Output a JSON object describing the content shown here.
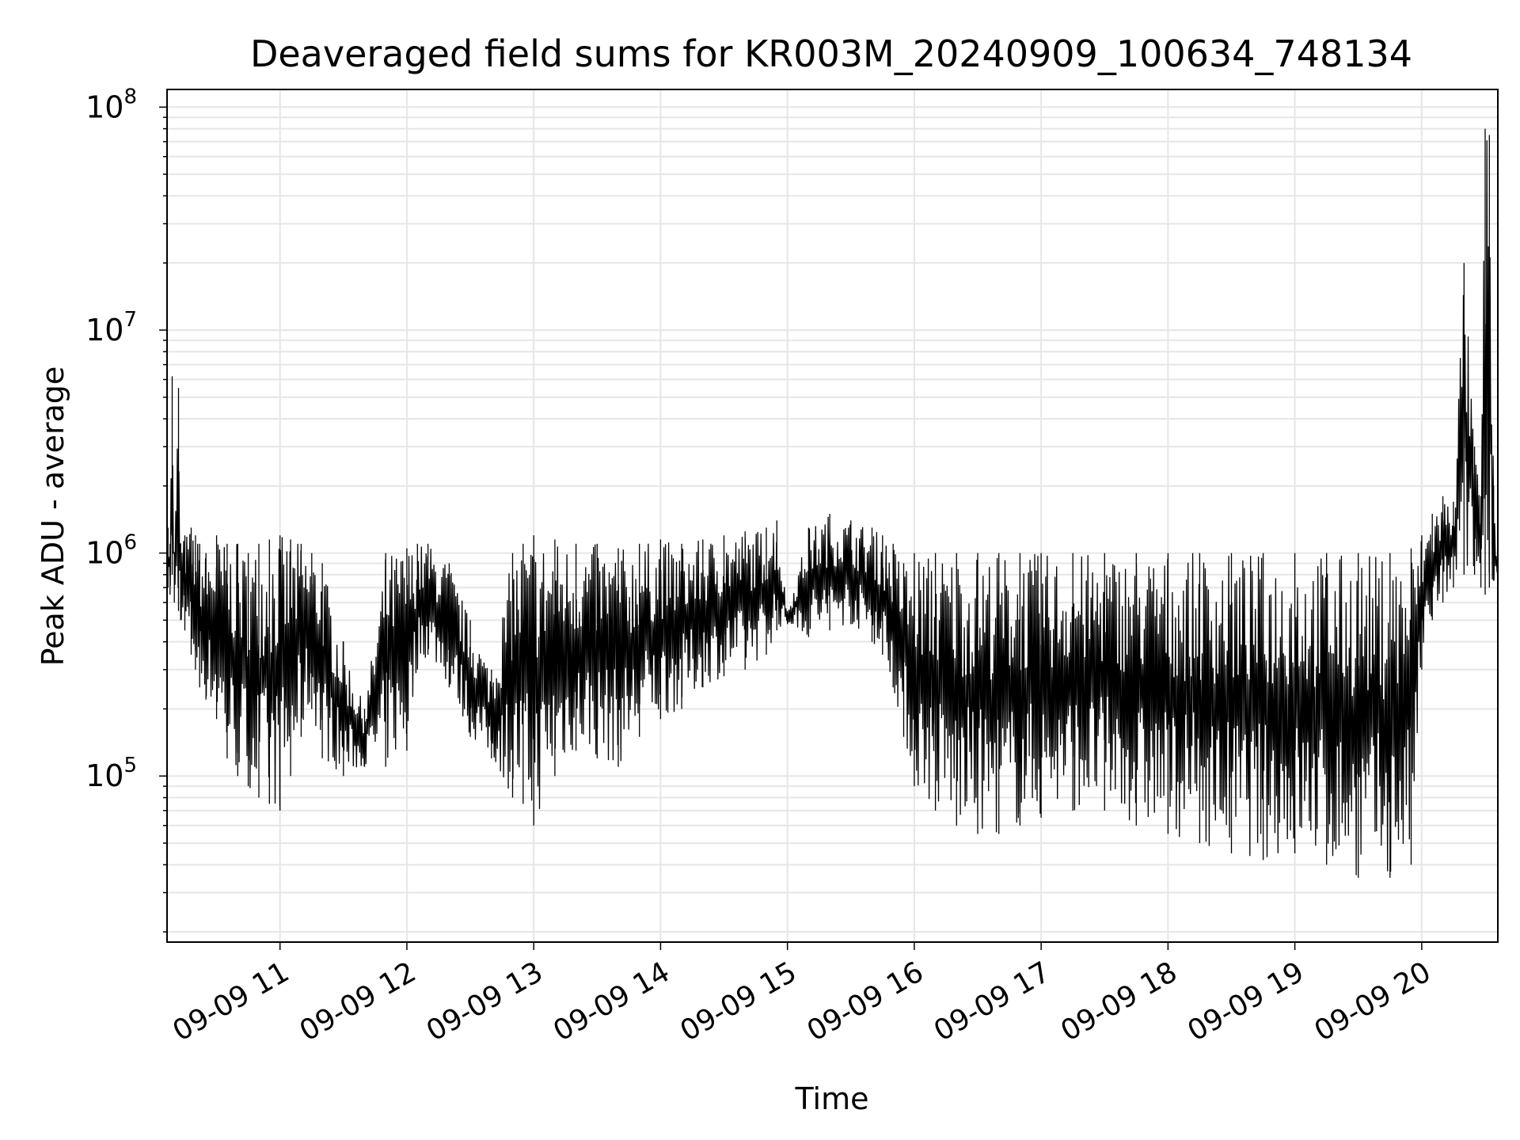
{
  "chart_data": {
    "type": "line",
    "title": "Deaveraged field sums for KR003M_20240909_100634_748134",
    "xlabel": "Time",
    "ylabel": "Peak ADU - average",
    "yscale": "log",
    "ylim": [
      18000,
      120000000
    ],
    "xlim": [
      "2024-09-09 10:06:34",
      "2024-09-09 20:36:00"
    ],
    "grid": true,
    "legend": "none",
    "line_color": "#000000",
    "grid_color": "#e6e6e6",
    "x_ticks": [
      {
        "value": "2024-09-09 11:00",
        "label": "09-09 11"
      },
      {
        "value": "2024-09-09 12:00",
        "label": "09-09 12"
      },
      {
        "value": "2024-09-09 13:00",
        "label": "09-09 13"
      },
      {
        "value": "2024-09-09 14:00",
        "label": "09-09 14"
      },
      {
        "value": "2024-09-09 15:00",
        "label": "09-09 15"
      },
      {
        "value": "2024-09-09 16:00",
        "label": "09-09 16"
      },
      {
        "value": "2024-09-09 17:00",
        "label": "09-09 17"
      },
      {
        "value": "2024-09-09 18:00",
        "label": "09-09 18"
      },
      {
        "value": "2024-09-09 19:00",
        "label": "09-09 19"
      },
      {
        "value": "2024-09-09 20:00",
        "label": "09-09 20"
      }
    ],
    "y_ticks": [
      {
        "value": 100000,
        "base": "10",
        "exp": "5"
      },
      {
        "value": 1000000,
        "base": "10",
        "exp": "6"
      },
      {
        "value": 10000000,
        "base": "10",
        "exp": "7"
      },
      {
        "value": 100000000,
        "base": "10",
        "exp": "8"
      }
    ],
    "series": [
      {
        "x": [
          "2024-09-09 10:07",
          "2024-09-09 10:08",
          "2024-09-09 10:09",
          "2024-09-09 10:10",
          "2024-09-09 10:12",
          "2024-09-09 10:13",
          "2024-09-09 10:15",
          "2024-09-09 10:18",
          "2024-09-09 10:20",
          "2024-09-09 10:22",
          "2024-09-09 10:25",
          "2024-09-09 10:30",
          "2024-09-09 10:35",
          "2024-09-09 10:40",
          "2024-09-09 10:45",
          "2024-09-09 10:50",
          "2024-09-09 10:55",
          "2024-09-09 11:00",
          "2024-09-09 11:05",
          "2024-09-09 11:10",
          "2024-09-09 11:15",
          "2024-09-09 11:20",
          "2024-09-09 11:30",
          "2024-09-09 11:40",
          "2024-09-09 11:50",
          "2024-09-09 12:00",
          "2024-09-09 12:05",
          "2024-09-09 12:10",
          "2024-09-09 12:20",
          "2024-09-09 12:30",
          "2024-09-09 12:40",
          "2024-09-09 12:50",
          "2024-09-09 12:55",
          "2024-09-09 13:00",
          "2024-09-09 13:10",
          "2024-09-09 13:20",
          "2024-09-09 13:30",
          "2024-09-09 13:40",
          "2024-09-09 13:50",
          "2024-09-09 14:00",
          "2024-09-09 14:10",
          "2024-09-09 14:20",
          "2024-09-09 14:30",
          "2024-09-09 14:40",
          "2024-09-09 14:50",
          "2024-09-09 14:55",
          "2024-09-09 15:00",
          "2024-09-09 15:10",
          "2024-09-09 15:20",
          "2024-09-09 15:30",
          "2024-09-09 15:40",
          "2024-09-09 15:45",
          "2024-09-09 15:50",
          "2024-09-09 15:55",
          "2024-09-09 16:00",
          "2024-09-09 16:10",
          "2024-09-09 16:20",
          "2024-09-09 16:30",
          "2024-09-09 16:40",
          "2024-09-09 16:50",
          "2024-09-09 17:00",
          "2024-09-09 17:15",
          "2024-09-09 17:30",
          "2024-09-09 17:45",
          "2024-09-09 18:00",
          "2024-09-09 18:15",
          "2024-09-09 18:30",
          "2024-09-09 18:45",
          "2024-09-09 19:00",
          "2024-09-09 19:15",
          "2024-09-09 19:30",
          "2024-09-09 19:45",
          "2024-09-09 19:55",
          "2024-09-09 20:00",
          "2024-09-09 20:05",
          "2024-09-09 20:10",
          "2024-09-09 20:15",
          "2024-09-09 20:20",
          "2024-09-09 20:25",
          "2024-09-09 20:28",
          "2024-09-09 20:30",
          "2024-09-09 20:32",
          "2024-09-09 20:34",
          "2024-09-09 20:36"
        ],
        "low": [
          700000,
          650000,
          800000,
          600000,
          550000,
          500000,
          450000,
          350000,
          300000,
          250000,
          220000,
          180000,
          120000,
          100000,
          90000,
          80000,
          75000,
          70000,
          100000,
          150000,
          200000,
          120000,
          100000,
          110000,
          110000,
          130000,
          300000,
          350000,
          250000,
          150000,
          120000,
          80000,
          75000,
          60000,
          100000,
          130000,
          120000,
          110000,
          150000,
          180000,
          200000,
          250000,
          280000,
          300000,
          350000,
          450000,
          480000,
          420000,
          450000,
          480000,
          400000,
          350000,
          250000,
          150000,
          90000,
          70000,
          60000,
          55000,
          55000,
          60000,
          65000,
          70000,
          70000,
          60000,
          55000,
          50000,
          45000,
          42000,
          45000,
          40000,
          35000,
          35000,
          40000,
          300000,
          500000,
          600000,
          700000,
          800000,
          800000,
          700000,
          650000,
          700000,
          750000,
          800000
        ],
        "high": [
          1300000,
          1100000,
          6200000,
          1000000,
          5500000,
          1100000,
          1200000,
          1300000,
          1200000,
          1100000,
          1000000,
          1200000,
          1100000,
          1100000,
          1000000,
          1100000,
          1150000,
          1200000,
          1150000,
          1100000,
          1000000,
          900000,
          400000,
          200000,
          1000000,
          1050000,
          1100000,
          1100000,
          900000,
          500000,
          300000,
          1000000,
          1100000,
          1200000,
          1150000,
          1100000,
          1100000,
          1050000,
          1100000,
          1150000,
          1100000,
          1150000,
          1200000,
          1250000,
          1300000,
          1400000,
          550000,
          1300000,
          1500000,
          1400000,
          1300000,
          1200000,
          1100000,
          900000,
          1000000,
          1000000,
          1000000,
          1000000,
          1000000,
          1000000,
          1000000,
          1000000,
          1000000,
          1000000,
          1000000,
          1000000,
          1000000,
          1000000,
          1000000,
          1000000,
          1000000,
          1000000,
          1050000,
          1200000,
          1500000,
          1800000,
          1700000,
          20000000,
          3000000,
          1800000,
          80000000,
          75000000,
          2000000,
          800000
        ]
      }
    ]
  }
}
